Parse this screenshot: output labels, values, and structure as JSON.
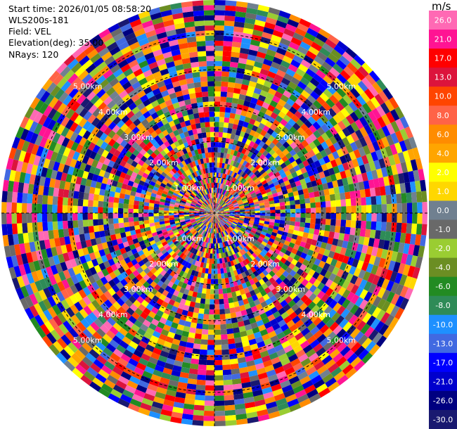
{
  "header": {
    "start_time": "Start time: 2026/01/05 08:58:20",
    "instrument": "WLS200s-181",
    "field": "Field: VEL",
    "elevation": "Elevation(deg): 35.00",
    "nrays": "NRays: 120"
  },
  "colorbar": {
    "unit": "m/s",
    "ticks": [
      "26.0",
      "21.0",
      "17.0",
      "13.0",
      "10.0",
      "8.0",
      "6.0",
      "4.0",
      "2.0",
      "1.0",
      "0.0",
      "-1.0",
      "-2.0",
      "-4.0",
      "-6.0",
      "-8.0",
      "-10.0",
      "-13.0",
      "-17.0",
      "-21.0",
      "-26.0",
      "-30.0"
    ],
    "colors": [
      "#ff69b4",
      "#ff1493",
      "#ff0000",
      "#dc143c",
      "#ff4500",
      "#ff6347",
      "#ff8c00",
      "#ffa500",
      "#ffff00",
      "#ffd700",
      "#708090",
      "#696969",
      "#9acd32",
      "#6b8e23",
      "#228b22",
      "#2e8b57",
      "#1e90ff",
      "#4169e1",
      "#0000ff",
      "#0000cd",
      "#000080",
      "#191970"
    ]
  },
  "chart_data": {
    "type": "heatmap",
    "projection": "polar PPI",
    "field": "VEL",
    "nrays": 120,
    "elevation_deg": 35.0,
    "range_ring_labels": [
      "1.00km",
      "2.00km",
      "3.00km",
      "4.00km",
      "5.00km"
    ],
    "value_range": [
      -30.0,
      26.0
    ]
  }
}
